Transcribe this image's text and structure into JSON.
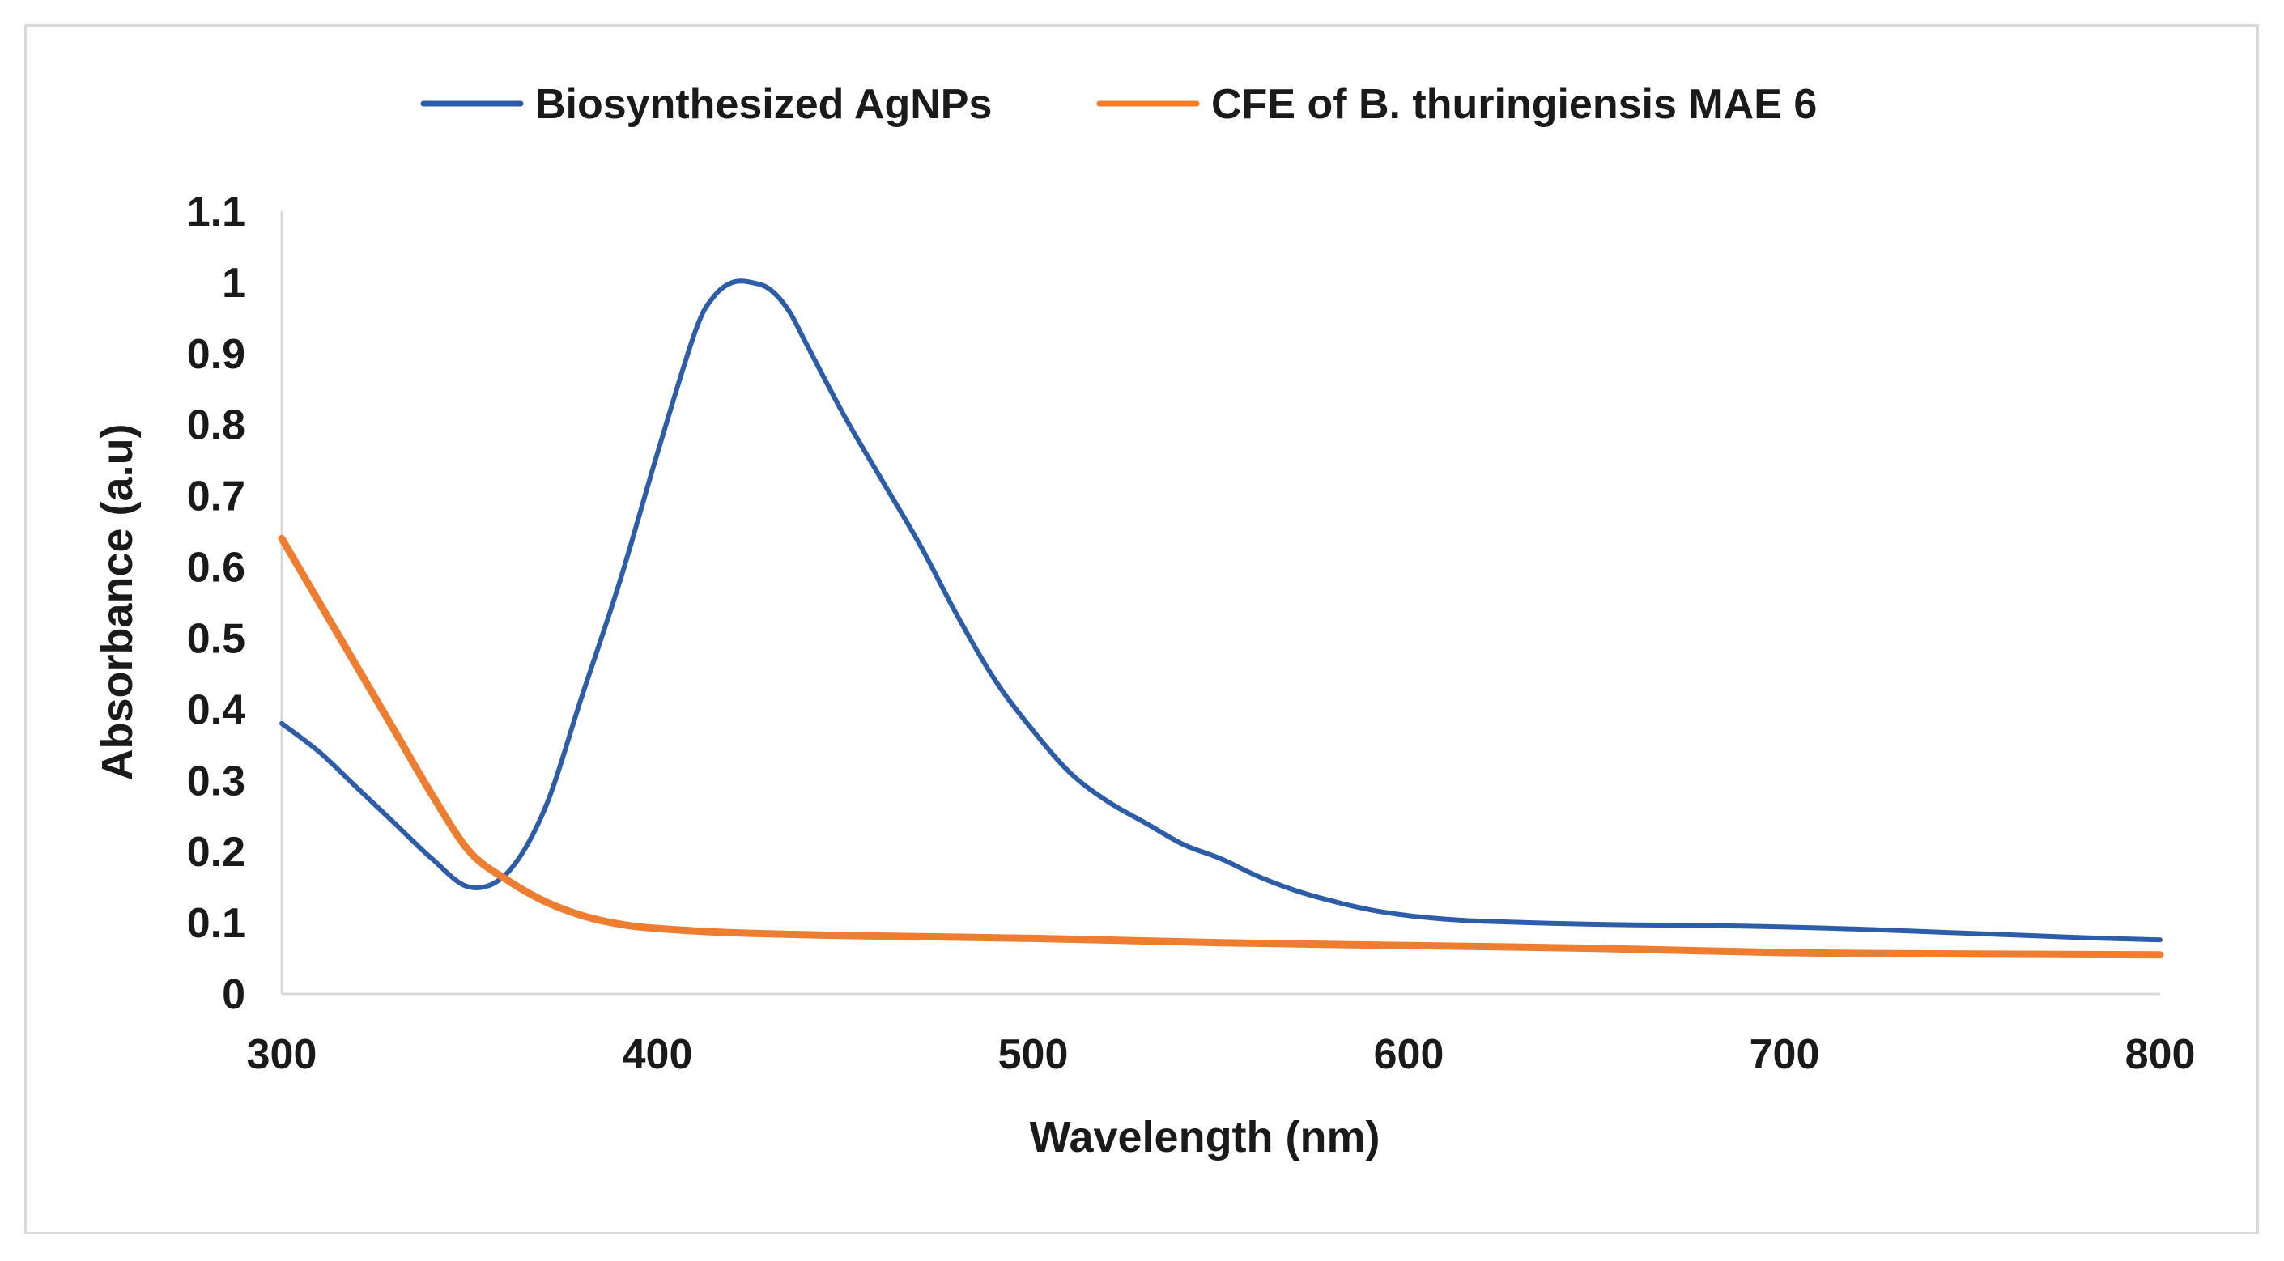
{
  "chart_data": {
    "type": "line",
    "title": "",
    "xlabel": "Wavelength (nm)",
    "ylabel": "Absorbance (a.u)",
    "xlim": [
      300,
      800
    ],
    "ylim": [
      0,
      1.1
    ],
    "xticks": [
      300,
      400,
      500,
      600,
      700,
      800
    ],
    "yticks": [
      0,
      0.1,
      0.2,
      0.3,
      0.4,
      0.5,
      0.6,
      0.7,
      0.8,
      0.9,
      1,
      1.1
    ],
    "xtick_labels": [
      "300",
      "400",
      "500",
      "600",
      "700",
      "800"
    ],
    "ytick_labels": [
      "0",
      "0.1",
      "0.2",
      "0.3",
      "0.4",
      "0.5",
      "0.6",
      "0.7",
      "0.8",
      "0.9",
      "1",
      "1.1"
    ],
    "grid": false,
    "legend_position": "top",
    "series": [
      {
        "name": "Biosynthesized AgNPs",
        "color": "#2E5DA8",
        "x": [
          300,
          310,
          320,
          330,
          340,
          350,
          360,
          370,
          380,
          390,
          400,
          410,
          415,
          420,
          425,
          430,
          435,
          440,
          450,
          460,
          470,
          480,
          490,
          500,
          510,
          520,
          530,
          540,
          550,
          560,
          570,
          580,
          590,
          600,
          610,
          620,
          640,
          660,
          680,
          700,
          720,
          740,
          760,
          780,
          800
        ],
        "y": [
          0.38,
          0.34,
          0.29,
          0.24,
          0.19,
          0.15,
          0.17,
          0.26,
          0.42,
          0.58,
          0.76,
          0.93,
          0.98,
          1.0,
          1.0,
          0.99,
          0.96,
          0.91,
          0.81,
          0.72,
          0.63,
          0.53,
          0.44,
          0.37,
          0.31,
          0.27,
          0.24,
          0.21,
          0.19,
          0.165,
          0.145,
          0.13,
          0.118,
          0.11,
          0.105,
          0.102,
          0.099,
          0.097,
          0.096,
          0.094,
          0.091,
          0.087,
          0.083,
          0.079,
          0.076
        ]
      },
      {
        "name": "CFE of B. thuringiensis MAE 6",
        "color": "#ED7D31",
        "x": [
          300,
          310,
          320,
          330,
          340,
          350,
          360,
          370,
          380,
          390,
          400,
          420,
          450,
          500,
          550,
          600,
          650,
          700,
          750,
          800
        ],
        "y": [
          0.64,
          0.55,
          0.46,
          0.37,
          0.28,
          0.2,
          0.16,
          0.13,
          0.11,
          0.098,
          0.092,
          0.086,
          0.082,
          0.078,
          0.072,
          0.068,
          0.064,
          0.058,
          0.056,
          0.055
        ]
      }
    ]
  }
}
